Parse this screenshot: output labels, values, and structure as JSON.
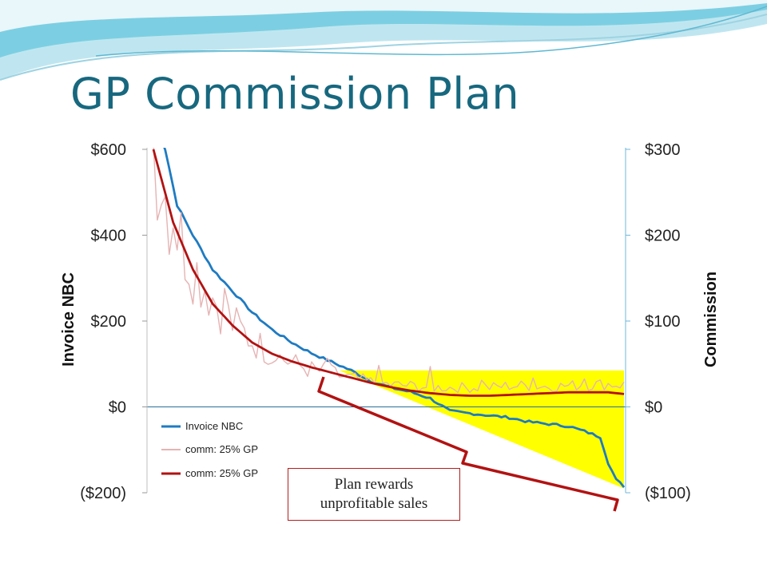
{
  "slide": {
    "title": "GP Commission Plan",
    "callout_line1": "Plan rewards",
    "callout_line2": "unprofitable sales",
    "colors": {
      "title": "#17687f",
      "highlight": "#ffff00",
      "invoice_line": "#1e7bc2",
      "comm_raw": "#e6b3b3",
      "comm_smooth": "#b21212",
      "bracket": "#b21212"
    }
  },
  "chart_data": {
    "type": "line",
    "ylabel": "Invoice NBC",
    "y2label": "Commission",
    "ylim": [
      -200,
      600
    ],
    "y2lim": [
      -100,
      300
    ],
    "yticks": [
      "$600",
      "$400",
      "$200",
      "$0",
      "($200)"
    ],
    "y2ticks": [
      "$300",
      "$200",
      "$100",
      "$0",
      "($100)"
    ],
    "legend": [
      "Invoice NBC",
      "comm: 25% GP",
      "comm: 25% GP"
    ],
    "legend_position": "bottom-left",
    "x_count": 120,
    "series": [
      {
        "name": "Invoice NBC",
        "axis": "left",
        "knots_x": [
          0,
          3,
          6,
          10,
          15,
          20,
          25,
          30,
          35,
          40,
          45,
          50,
          55,
          60,
          65,
          70,
          75,
          80,
          85,
          90,
          95,
          100,
          105,
          110,
          113,
          115,
          117,
          119
        ],
        "knots_y": [
          680,
          600,
          470,
          400,
          320,
          270,
          220,
          180,
          150,
          125,
          105,
          85,
          60,
          45,
          35,
          20,
          -10,
          -15,
          -20,
          -25,
          -35,
          -40,
          -45,
          -60,
          -70,
          -130,
          -170,
          -185
        ]
      },
      {
        "name": "comm: 25% GP",
        "axis": "right",
        "style": "raw",
        "knots_x": [
          0,
          3,
          6,
          10,
          15,
          20,
          25,
          30,
          35,
          40,
          45,
          50,
          55,
          60,
          65,
          70,
          75,
          80,
          85,
          90,
          95,
          100,
          105,
          110,
          115,
          119
        ],
        "knots_y": [
          300,
          240,
          200,
          160,
          125,
          95,
          75,
          60,
          50,
          42,
          38,
          32,
          28,
          25,
          24,
          22,
          22,
          22,
          22,
          24,
          24,
          23,
          24,
          25,
          26,
          25
        ]
      },
      {
        "name": "comm: 25% GP",
        "axis": "right",
        "style": "smooth",
        "knots_x": [
          0,
          5,
          10,
          15,
          20,
          25,
          30,
          35,
          40,
          45,
          50,
          55,
          60,
          65,
          70,
          75,
          80,
          85,
          90,
          95,
          100,
          105,
          110,
          115,
          119
        ],
        "knots_y": [
          300,
          215,
          160,
          120,
          95,
          75,
          62,
          53,
          46,
          40,
          34,
          28,
          23,
          19,
          16,
          14,
          13,
          13,
          14,
          15,
          16,
          17,
          17,
          17,
          15
        ]
      }
    ],
    "highlight_region": {
      "x_from": 47,
      "x_to": 119,
      "y_top": 85,
      "y_bottom": -190,
      "axis": "left"
    }
  }
}
